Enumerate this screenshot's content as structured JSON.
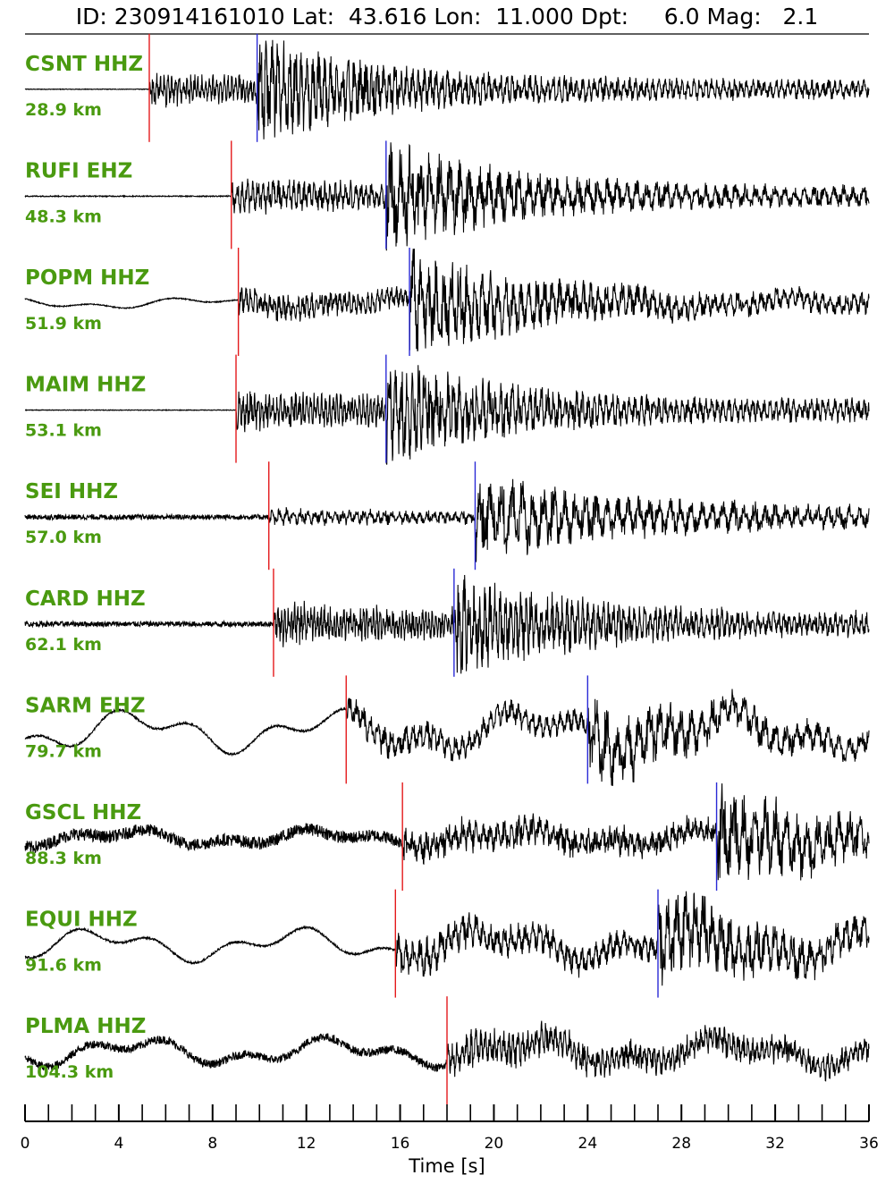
{
  "header": {
    "text": "ID: 230914161010 Lat:  43.616 Lon:  11.000 Dpt:     6.0 Mag:   2.1"
  },
  "colors": {
    "label": "#4a9a10",
    "p_pick": "#e41a1c",
    "s_pick": "#2a2ad6",
    "trace": "#000000"
  },
  "chart_data": {
    "type": "line",
    "title": "ID: 230914161010 Lat:  43.616 Lon:  11.000 Dpt:     6.0 Mag:   2.1",
    "xlabel": "Time [s]",
    "xlim": [
      0,
      36
    ],
    "x_ticks": [
      0,
      4,
      8,
      12,
      16,
      20,
      24,
      28,
      32,
      36
    ],
    "x_tick_labels": [
      "0",
      "4",
      "8",
      "12",
      "16",
      "20",
      "24",
      "28",
      "32",
      "36"
    ],
    "minor_tick_step": 1,
    "traces": [
      {
        "station": "CSNT HHZ",
        "distance": "28.9 km",
        "p_pick": 5.3,
        "s_pick": 9.9,
        "noise": 0.006,
        "coda": 0.32,
        "s_amp": 0.85,
        "drift": 0.0,
        "period": 0.16,
        "period_s": 0.25
      },
      {
        "station": "RUFI EHZ",
        "distance": "48.3 km",
        "p_pick": 8.8,
        "s_pick": 15.4,
        "noise": 0.01,
        "coda": 0.34,
        "s_amp": 0.9,
        "drift": 0.0,
        "period": 0.22,
        "period_s": 0.42
      },
      {
        "station": "POPM HHZ",
        "distance": "51.9 km",
        "p_pick": 9.1,
        "s_pick": 16.4,
        "noise": 0.01,
        "coda": 0.28,
        "s_amp": 0.85,
        "drift": 0.12,
        "period": 0.2,
        "period_s": 0.33
      },
      {
        "station": "MAIM HHZ",
        "distance": "53.1 km",
        "p_pick": 9.0,
        "s_pick": 15.4,
        "noise": 0.006,
        "coda": 0.38,
        "s_amp": 0.85,
        "drift": 0.0,
        "period": 0.16,
        "period_s": 0.25
      },
      {
        "station": "SEI HHZ",
        "distance": "57.0 km",
        "p_pick": 10.4,
        "s_pick": 19.2,
        "noise": 0.05,
        "coda": 0.14,
        "s_amp": 0.7,
        "drift": 0.0,
        "period": 0.3,
        "period_s": 0.45
      },
      {
        "station": "CARD HHZ",
        "distance": "62.1 km",
        "p_pick": 10.6,
        "s_pick": 18.3,
        "noise": 0.05,
        "coda": 0.38,
        "s_amp": 0.8,
        "drift": 0.0,
        "period": 0.14,
        "period_s": 0.22
      },
      {
        "station": "SARM EHZ",
        "distance": "79.7 km",
        "p_pick": 13.7,
        "s_pick": 24.0,
        "noise": 0.02,
        "coda": 0.3,
        "s_amp": 0.6,
        "drift": 0.45,
        "period": 0.3,
        "period_s": 0.45
      },
      {
        "station": "GSCL HHZ",
        "distance": "88.3 km",
        "p_pick": 16.1,
        "s_pick": 29.5,
        "noise": 0.12,
        "coda": 0.28,
        "s_amp": 0.75,
        "drift": 0.18,
        "period": 0.3,
        "period_s": 0.45
      },
      {
        "station": "EQUI HHZ",
        "distance": "91.6 km",
        "p_pick": 15.8,
        "s_pick": 27.0,
        "noise": 0.02,
        "coda": 0.38,
        "s_amp": 0.7,
        "drift": 0.35,
        "period": 0.3,
        "period_s": 0.38
      },
      {
        "station": "PLMA HHZ",
        "distance": "104.3 km",
        "p_pick": 18.0,
        "s_pick": null,
        "noise": 0.08,
        "coda": 0.35,
        "s_amp": 0.6,
        "drift": 0.3,
        "period": 0.2,
        "period_s": 0.3
      }
    ]
  }
}
